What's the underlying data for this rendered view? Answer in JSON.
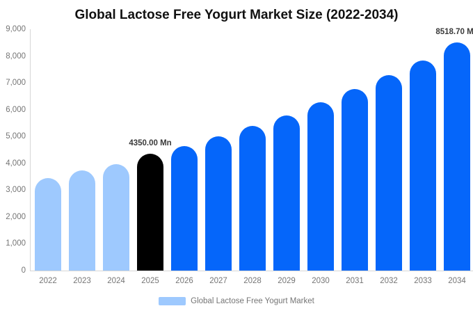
{
  "title": "Global Lactose Free Yogurt Market Size (2022-2034)",
  "legend": {
    "label": "Global Lactose Free Yogurt Market"
  },
  "chart_data": {
    "type": "bar",
    "title": "Global Lactose Free Yogurt Market Size (2022-2034)",
    "categories": [
      "2022",
      "2023",
      "2024",
      "2025",
      "2026",
      "2027",
      "2028",
      "2029",
      "2030",
      "2031",
      "2032",
      "2033",
      "2034"
    ],
    "series": [
      {
        "name": "Global Lactose Free Yogurt Market",
        "unit": "Mn",
        "values": [
          3450,
          3730,
          3970,
          4350,
          4640,
          5000,
          5390,
          5780,
          6280,
          6770,
          7290,
          7830,
          8518.7
        ]
      }
    ],
    "bar_styles": [
      "historical",
      "historical",
      "historical",
      "estimate",
      "forecast",
      "forecast",
      "forecast",
      "forecast",
      "forecast",
      "forecast",
      "forecast",
      "forecast",
      "forecast"
    ],
    "colors": {
      "historical": "#9ec9fe",
      "estimate": "#000000",
      "forecast": "#0566fa"
    },
    "y_ticks": [
      "0",
      "1,000",
      "2,000",
      "3,000",
      "4,000",
      "5,000",
      "6,000",
      "7,000",
      "8,000",
      "9,000"
    ],
    "ylim": [
      0,
      9000
    ],
    "grid": false,
    "legend_position": "bottom",
    "annotations": [
      {
        "category": "2025",
        "label": "4350.00 Mn"
      },
      {
        "category": "2034",
        "label": "8518.70 Mn"
      }
    ]
  }
}
